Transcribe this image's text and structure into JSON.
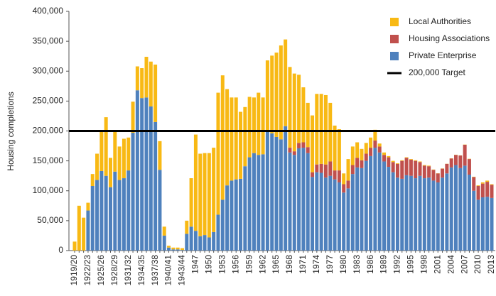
{
  "chart_data": {
    "type": "stacked-bar",
    "y_label": "Housing completions",
    "categories": [
      "1919/20",
      null,
      null,
      "1922/23",
      null,
      null,
      "1925/26",
      null,
      null,
      "1928/29",
      null,
      null,
      "1931/32",
      null,
      null,
      "1934/35",
      null,
      null,
      "1937/38",
      null,
      null,
      "1940/41",
      null,
      null,
      "1943/44",
      null,
      null,
      "1947",
      null,
      null,
      "1950",
      null,
      null,
      "1953",
      null,
      null,
      "1956",
      null,
      null,
      "1959",
      null,
      null,
      "1962",
      null,
      null,
      "1965",
      null,
      null,
      "1968",
      null,
      null,
      "1971",
      null,
      null,
      "1974",
      null,
      null,
      "1977",
      null,
      null,
      "1980",
      null,
      null,
      "1983",
      null,
      null,
      "1986",
      null,
      null,
      "1989",
      null,
      null,
      "1992",
      null,
      null,
      "1995",
      null,
      null,
      "1998",
      null,
      null,
      "2001",
      null,
      null,
      "2004",
      null,
      null,
      "2007",
      null,
      null,
      "2010",
      null,
      null,
      "2013"
    ],
    "series": [
      {
        "name": "Local Authorities",
        "color": "#f8b914",
        "values": [
          15000,
          75000,
          55000,
          13000,
          20000,
          44000,
          67000,
          98000,
          49000,
          68000,
          56000,
          66000,
          55000,
          52000,
          40000,
          50000,
          68000,
          75000,
          96000,
          48000,
          15000,
          3000,
          3000,
          3000,
          3000,
          22000,
          81000,
          161000,
          138000,
          137000,
          141000,
          141000,
          204000,
          208000,
          161000,
          139000,
          137000,
          112000,
          99000,
          101000,
          93000,
          104000,
          95000,
          119000,
          130000,
          141000,
          157000,
          145000,
          135000,
          130000,
          114000,
          92000,
          74000,
          95000,
          118000,
          117000,
          116000,
          98000,
          75000,
          69000,
          18000,
          36000,
          31000,
          26000,
          19000,
          18000,
          17000,
          18000,
          5000,
          4000,
          2000,
          2000,
          1000,
          1000,
          1000,
          1000,
          1000,
          1000,
          1000,
          1000,
          500,
          300,
          300,
          200,
          300,
          300,
          200,
          300,
          500,
          500,
          1000,
          2000,
          2000,
          1000
        ]
      },
      {
        "name": "Housing Associations",
        "color": "#c0504d",
        "values": [
          0,
          0,
          0,
          0,
          0,
          0,
          0,
          0,
          0,
          0,
          0,
          0,
          0,
          0,
          0,
          0,
          0,
          0,
          0,
          0,
          0,
          0,
          0,
          0,
          0,
          0,
          0,
          0,
          0,
          0,
          0,
          0,
          0,
          0,
          0,
          0,
          0,
          0,
          0,
          0,
          0,
          0,
          0,
          0,
          0,
          0,
          0,
          0,
          8000,
          6000,
          9000,
          9000,
          10000,
          8000,
          13000,
          15000,
          22000,
          24000,
          15000,
          20000,
          14000,
          13000,
          15000,
          16000,
          13000,
          12000,
          14000,
          12000,
          10000,
          11000,
          16000,
          17000,
          23000,
          30000,
          29000,
          27000,
          29000,
          23000,
          21000,
          19000,
          18000,
          15000,
          15000,
          16000,
          15000,
          17000,
          21000,
          35000,
          26000,
          23000,
          23000,
          23000,
          25000,
          22000
        ]
      },
      {
        "name": "Private Enterprise",
        "color": "#4f81bd",
        "values": [
          0,
          0,
          0,
          67000,
          108000,
          118000,
          133000,
          125000,
          106000,
          132000,
          118000,
          121000,
          134000,
          197000,
          268000,
          255000,
          256000,
          241000,
          215000,
          135000,
          25000,
          5000,
          2000,
          2000,
          1000,
          28000,
          40000,
          33000,
          24000,
          26000,
          22000,
          31000,
          60000,
          85000,
          109000,
          117000,
          119000,
          120000,
          141000,
          156000,
          163000,
          160000,
          161000,
          199000,
          196000,
          190000,
          186000,
          208000,
          164000,
          160000,
          171000,
          172000,
          163000,
          123000,
          131000,
          130000,
          122000,
          125000,
          119000,
          114000,
          97000,
          104000,
          128000,
          139000,
          138000,
          150000,
          158000,
          172000,
          164000,
          149000,
          140000,
          131000,
          122000,
          120000,
          126000,
          125000,
          121000,
          125000,
          121000,
          122000,
          117000,
          114000,
          122000,
          129000,
          139000,
          143000,
          138000,
          142000,
          127000,
          100000,
          85000,
          89000,
          90000,
          88000
        ]
      }
    ],
    "target": {
      "name": "200,000 Target",
      "value": 200000,
      "color": "#000000"
    },
    "ylim": [
      0,
      400000
    ],
    "yticks": [
      0,
      {
        "value": 50000,
        "label": "50,000"
      },
      {
        "value": 100000,
        "label": "100,000"
      },
      {
        "value": 150000,
        "label": "150,000"
      },
      {
        "value": 200000,
        "label": "200,000"
      },
      {
        "value": 250000,
        "label": "250,000"
      },
      {
        "value": 300000,
        "label": "300,000"
      },
      {
        "value": 350000,
        "label": "350,000"
      },
      {
        "value": 400000,
        "label": "400,000"
      }
    ],
    "grid": false
  }
}
